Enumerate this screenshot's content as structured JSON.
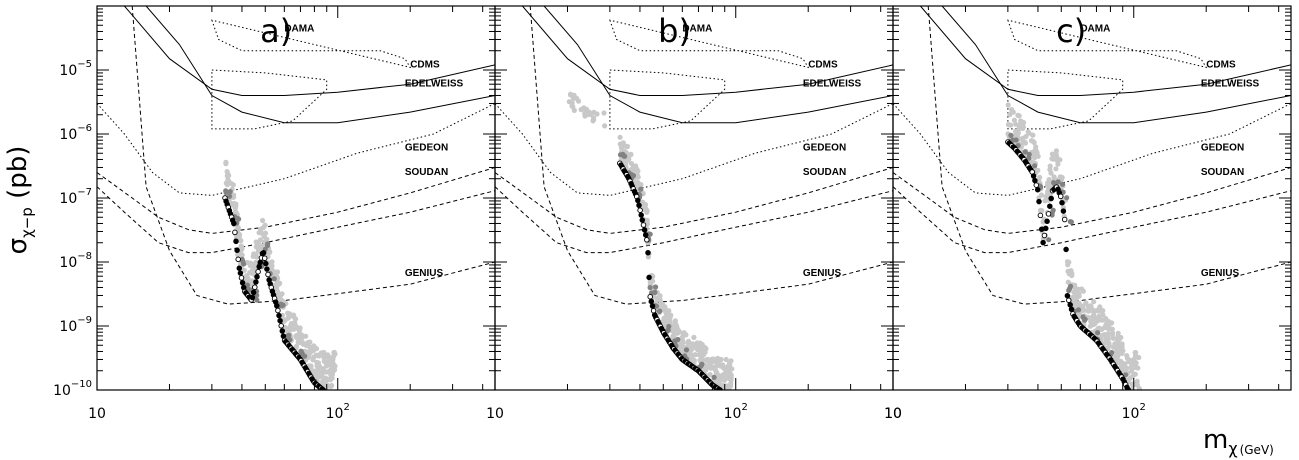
{
  "chart_data": [
    {
      "type": "scatter",
      "panel_label": "a)",
      "xscale": "log",
      "yscale": "log",
      "xlim": [
        10,
        450
      ],
      "ylim": [
        1e-10,
        0.0001
      ],
      "xticks": [
        "10",
        "10",
        "2"
      ],
      "experiments": [
        "DAMA",
        "CDMS",
        "EDELWEISS",
        "GEDEON",
        "SOUDAN",
        "GENIUS"
      ],
      "boundary": [
        [
          34,
          1e-07
        ],
        [
          37,
          4e-08
        ],
        [
          39,
          8e-09
        ],
        [
          41,
          3.5e-09
        ],
        [
          44,
          2.5e-09
        ],
        [
          47,
          8e-09
        ],
        [
          49,
          1.5e-08
        ],
        [
          52,
          5e-09
        ],
        [
          56,
          2e-09
        ],
        [
          60,
          6e-10
        ],
        [
          70,
          3e-10
        ],
        [
          80,
          1.3e-10
        ],
        [
          87,
          1e-10
        ]
      ]
    },
    {
      "type": "scatter",
      "panel_label": "b)",
      "xscale": "log",
      "yscale": "log",
      "xlim": [
        10,
        450
      ],
      "ylim": [
        1e-10,
        0.0001
      ],
      "xticks": [
        "10",
        "10",
        "2"
      ],
      "experiments": [
        "DAMA",
        "CDMS",
        "EDELWEISS",
        "GEDEON",
        "SOUDAN",
        "GENIUS"
      ],
      "boundary": [
        [
          33,
          3.5e-07
        ],
        [
          36,
          2e-07
        ],
        [
          39,
          1e-07
        ],
        [
          43,
          2e-08
        ],
        [
          44,
          3e-09
        ],
        [
          46,
          1.5e-09
        ],
        [
          50,
          8e-10
        ],
        [
          55,
          4.5e-10
        ],
        [
          60,
          3e-10
        ],
        [
          70,
          2e-10
        ],
        [
          80,
          1.2e-10
        ],
        [
          86,
          1e-10
        ]
      ]
    },
    {
      "type": "scatter",
      "panel_label": "c)",
      "xscale": "log",
      "yscale": "log",
      "xlim": [
        10,
        450
      ],
      "ylim": [
        1e-10,
        0.0001
      ],
      "xticks": [
        "10",
        "10",
        "2"
      ],
      "experiments": [
        "DAMA",
        "CDMS",
        "EDELWEISS",
        "GEDEON",
        "SOUDAN",
        "GENIUS"
      ],
      "boundary": [
        [
          30,
          7.5e-07
        ],
        [
          32,
          6e-07
        ],
        [
          35,
          4e-07
        ],
        [
          38,
          2.5e-07
        ],
        [
          40,
          1.3e-07
        ],
        [
          42,
          2e-08
        ],
        [
          44,
          5e-08
        ],
        [
          46,
          1.3e-07
        ],
        [
          48,
          1.5e-07
        ],
        [
          50,
          1e-07
        ],
        [
          52,
          4e-08
        ],
        [
          53,
          3e-09
        ],
        [
          56,
          1.5e-09
        ],
        [
          60,
          1e-09
        ],
        [
          70,
          6e-10
        ],
        [
          80,
          3e-10
        ],
        [
          90,
          1.5e-10
        ],
        [
          95,
          1e-10
        ]
      ]
    }
  ],
  "axes": {
    "ylabel_main": "σ",
    "ylabel_sub": "χ−p",
    "ylabel_unit": "(pb)",
    "xlabel_main": "m",
    "xlabel_sub": "χ",
    "xlabel_unit": "(GeV)",
    "yticks": [
      {
        "mant": "10",
        "exp": "−5"
      },
      {
        "mant": "10",
        "exp": "−6"
      },
      {
        "mant": "10",
        "exp": "−7"
      },
      {
        "mant": "10",
        "exp": "−8"
      },
      {
        "mant": "10",
        "exp": "−9"
      },
      {
        "mant": "10",
        "exp": "−10"
      }
    ]
  },
  "colors": {
    "light": "#c8c8c8",
    "mid": "#828282",
    "dark": "#000000"
  }
}
